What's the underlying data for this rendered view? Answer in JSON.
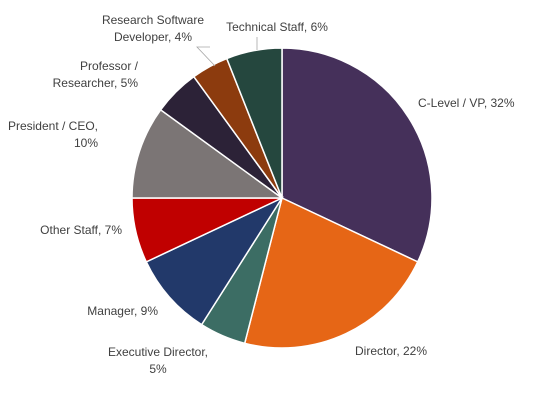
{
  "chart_data": {
    "type": "pie",
    "title": "",
    "start_angle_deg": 0,
    "direction": "clockwise",
    "series": [
      {
        "values": [
          32,
          22,
          5,
          9,
          7,
          10,
          5,
          4,
          6
        ]
      }
    ],
    "categories": [
      "C-Level / VP",
      "Director",
      "Executive Director",
      "Manager",
      "Other Staff",
      "President / CEO",
      "Professor / Researcher",
      "Research Software Developer",
      "Technical Staff"
    ],
    "colors": [
      "#45305a",
      "#e66616",
      "#3c6d64",
      "#22396a",
      "#c00000",
      "#7b7575",
      "#2c2237",
      "#8c3b0e",
      "#25473e"
    ],
    "data_labels": [
      [
        "C-Level / VP, 32%"
      ],
      [
        "Director, 22%"
      ],
      [
        "Executive Director,",
        "5%"
      ],
      [
        "Manager, 9%"
      ],
      [
        "Other Staff, 7%"
      ],
      [
        "President / CEO,",
        "10%"
      ],
      [
        "Professor /",
        "Researcher, 5%"
      ],
      [
        "Research Software",
        "Developer, 4%"
      ],
      [
        "Technical Staff, 6%"
      ]
    ],
    "legend": "none"
  }
}
